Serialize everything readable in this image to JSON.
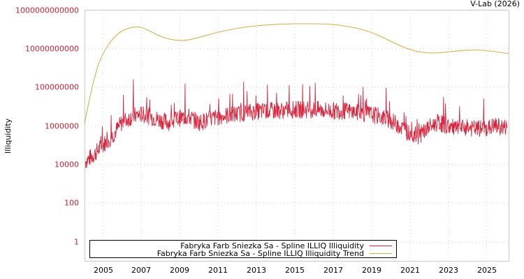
{
  "credit": "V-Lab (2026)",
  "colors": {
    "series": "#d7263d",
    "trend": "#d4b04a",
    "axis_tick_labels": "#cc2233",
    "grid": "#cccccc",
    "frame": "#c8c8c8"
  },
  "legend": {
    "items": [
      {
        "label": "Fabryka Farb Sniezka Sa - Spline ILLIQ Illiquidity",
        "color": "#d7263d"
      },
      {
        "label": "Fabryka Farb Sniezka Sa - Spline ILLIQ Illiquidity Trend",
        "color": "#d4b04a"
      }
    ]
  },
  "axes": {
    "ylabel": "Illiquidity",
    "yticks": [
      "1000000000000",
      "10000000000",
      "100000000",
      "1000000",
      "10000",
      "100",
      "1"
    ],
    "xticks": [
      "2005",
      "2007",
      "2009",
      "2011",
      "2013",
      "2015",
      "2017",
      "2019",
      "2021",
      "2023",
      "2025"
    ]
  },
  "chart_data": {
    "type": "line",
    "title": "",
    "xlabel": "",
    "ylabel": "Illiquidity",
    "yscale": "log",
    "ylim": [
      0.1,
      1000000000000
    ],
    "xlim": [
      2004.05,
      2026.2
    ],
    "grid": true,
    "legend_position": "bottom-inside",
    "x_tick_labels": [
      "2005",
      "2007",
      "2009",
      "2011",
      "2013",
      "2015",
      "2017",
      "2019",
      "2021",
      "2023",
      "2025"
    ],
    "y_tick_labels": [
      "1",
      "100",
      "10000",
      "1000000",
      "100000000",
      "10000000000",
      "1000000000000"
    ],
    "series": [
      {
        "name": "Fabryka Farb Sniezka Sa - Spline ILLIQ Illiquidity",
        "color": "#d7263d",
        "x": [
          2004.1,
          2004.5,
          2005.0,
          2005.5,
          2006.0,
          2006.5,
          2007.0,
          2007.5,
          2008.0,
          2008.5,
          2009.0,
          2009.5,
          2010.0,
          2010.5,
          2011.0,
          2011.5,
          2012.0,
          2012.5,
          2013.0,
          2013.5,
          2014.0,
          2014.5,
          2015.0,
          2015.5,
          2016.0,
          2016.5,
          2017.0,
          2017.5,
          2018.0,
          2018.5,
          2019.0,
          2019.5,
          2020.0,
          2020.5,
          2021.0,
          2021.5,
          2022.0,
          2022.5,
          2023.0,
          2023.5,
          2024.0,
          2024.5,
          2025.0,
          2025.5,
          2026.0
        ],
        "values": [
          15000,
          30000,
          100000,
          300000,
          1500000,
          3000000,
          4000000,
          3000000,
          2000000,
          1500000,
          2500000,
          3000000,
          1500000,
          2000000,
          3000000,
          3500000,
          4000000,
          5000000,
          5500000,
          6000000,
          6000000,
          6500000,
          7000000,
          7000000,
          7000000,
          6500000,
          6000000,
          6000000,
          5500000,
          4500000,
          4000000,
          3000000,
          2000000,
          1000000,
          400000,
          300000,
          800000,
          1500000,
          1000000,
          700000,
          800000,
          700000,
          700000,
          1000000,
          800000
        ],
        "peaks": [
          {
            "x": 2006.6,
            "value": 250000000
          },
          {
            "x": 2009.3,
            "value": 150000000
          },
          {
            "x": 2013.6,
            "value": 130000000
          },
          {
            "x": 2016.1,
            "value": 160000000
          },
          {
            "x": 2018.6,
            "value": 100000000
          },
          {
            "x": 2019.8,
            "value": 90000000
          },
          {
            "x": 2022.8,
            "value": 30000000
          }
        ]
      },
      {
        "name": "Fabryka Farb Sniezka Sa - Spline ILLIQ Illiquidity Trend",
        "color": "#d4b04a",
        "x": [
          2004.05,
          2004.6,
          2005.1,
          2005.6,
          2006.1,
          2006.6,
          2006.9,
          2007.4,
          2007.9,
          2008.9,
          2009.5,
          2010.4,
          2011.5,
          2012.9,
          2014.1,
          2014.9,
          2016.0,
          2016.9,
          2017.8,
          2018.9,
          2019.9,
          2020.9,
          2021.8,
          2022.5,
          2023.6,
          2024.3,
          2025.1,
          2026.2
        ],
        "values": [
          1000000,
          300000000,
          6000000000,
          30000000000,
          60000000000,
          120000000000,
          110000000000,
          70000000000,
          40000000000,
          25000000000,
          30000000000,
          45000000000,
          80000000000,
          130000000000,
          160000000000,
          180000000000,
          180000000000,
          160000000000,
          110000000000,
          70000000000,
          25000000000,
          10000000000,
          6000000000,
          5500000000,
          7500000000,
          8500000000,
          7500000000,
          5500000000
        ]
      }
    ]
  }
}
